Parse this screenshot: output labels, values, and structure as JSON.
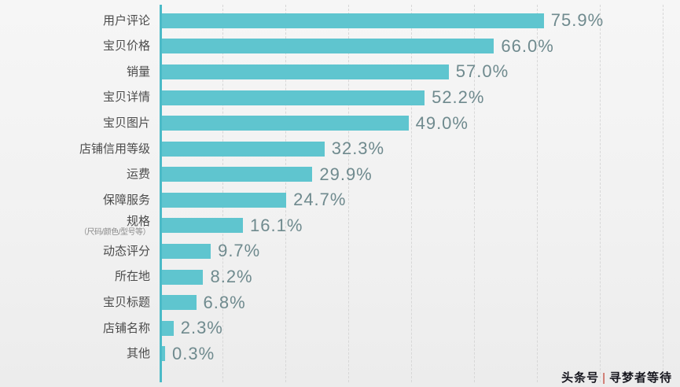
{
  "chart_data": {
    "type": "bar",
    "orientation": "horizontal",
    "title": "",
    "xlabel": "",
    "ylabel": "",
    "xlim": [
      0,
      100
    ],
    "grid": "dashed-vertical",
    "legend": "none",
    "bar_color": "#5fc5cf",
    "axis_color": "#4bbac7",
    "categories": [
      "用户评论",
      "宝贝价格",
      "销量",
      "宝贝详情",
      "宝贝图片",
      "店铺信用等级",
      "运费",
      "保障服务",
      "规格",
      "动态评分",
      "所在地",
      "宝贝标题",
      "店铺名称",
      "其他"
    ],
    "subtitles": [
      "",
      "",
      "",
      "",
      "",
      "",
      "",
      "",
      "（尺码/颜色/型号等）",
      "",
      "",
      "",
      "",
      ""
    ],
    "values": [
      75.9,
      66.0,
      57.0,
      52.2,
      49.0,
      32.3,
      29.9,
      24.7,
      16.1,
      9.7,
      8.2,
      6.8,
      2.3,
      0.3
    ],
    "value_labels": [
      "75.9%",
      "66.0%",
      "57.0%",
      "52.2%",
      "49.0%",
      "32.3%",
      "29.9%",
      "24.7%",
      "16.1%",
      "9.7%",
      "8.2%",
      "6.8%",
      "2.3%",
      "0.3%"
    ]
  },
  "watermark": {
    "prefix": "头条号",
    "separator": "|",
    "name": "寻梦者等待"
  }
}
